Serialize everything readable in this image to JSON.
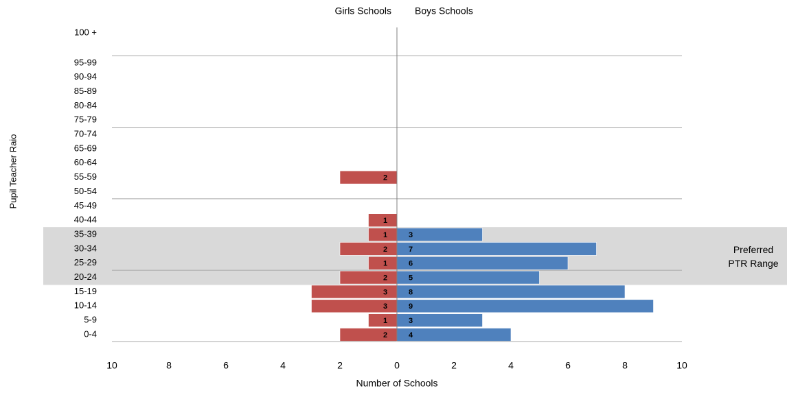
{
  "chart_data": {
    "type": "bar",
    "orientation": "horizontal",
    "ylabel": "Pupil Teacher Raio",
    "xlabel": "Number of Schools",
    "categories": [
      "0-4",
      "5-9",
      "10-14",
      "15-19",
      "20-24",
      "25-29",
      "30-34",
      "35-39",
      "40-44",
      "45-49",
      "50-54",
      "55-59",
      "60-64",
      "65-69",
      "70-74",
      "75-79",
      "80-84",
      "85-89",
      "90-94",
      "95-99",
      "100 +"
    ],
    "series": [
      {
        "name": "Girls Schools",
        "side": "left",
        "color": "#c0504d",
        "values": [
          2,
          1,
          3,
          3,
          2,
          1,
          2,
          1,
          1,
          0,
          0,
          2,
          0,
          0,
          0,
          0,
          0,
          0,
          0,
          0,
          0
        ]
      },
      {
        "name": "Boys Schools",
        "side": "right",
        "color": "#4f81bd",
        "values": [
          4,
          3,
          9,
          8,
          5,
          6,
          7,
          3,
          0,
          0,
          0,
          0,
          0,
          0,
          0,
          0,
          0,
          0,
          0,
          0,
          0
        ]
      }
    ],
    "xlim": [
      -10,
      10
    ],
    "xticks": [
      -10,
      -8,
      -6,
      -4,
      -2,
      0,
      2,
      4,
      6,
      8,
      10
    ],
    "xtick_labels": [
      "10",
      "8",
      "6",
      "4",
      "2",
      "0",
      "2",
      "4",
      "6",
      "8",
      "10"
    ],
    "band": {
      "label_lines": [
        "Preferred",
        "PTR Range"
      ],
      "from_category": "20-24",
      "to_category": "35-39",
      "color": "#d9d9d9"
    },
    "grid": true
  }
}
